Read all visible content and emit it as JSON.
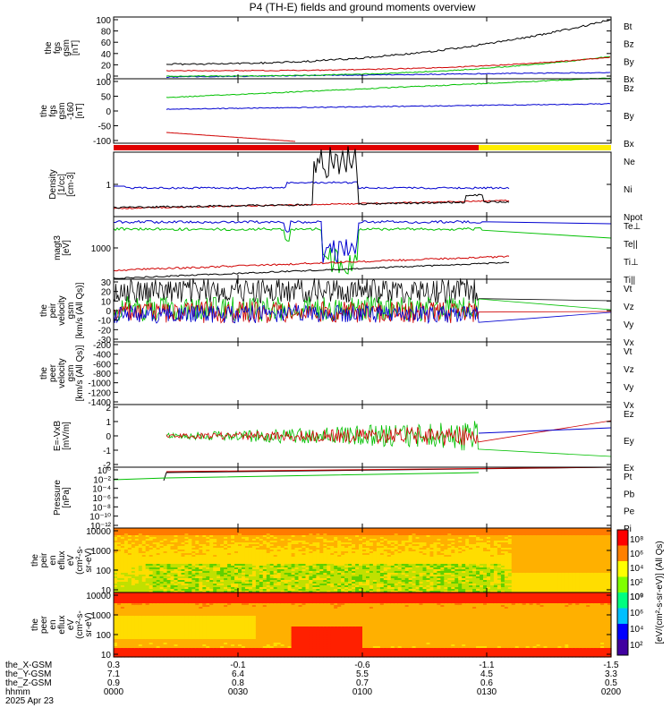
{
  "title": "P4 (TH-E) fields and ground moments overview",
  "panels": [
    {
      "id": "fgs-gsm",
      "ylabel_lines": [
        "the",
        "fgs",
        "gsm",
        "[nT]"
      ],
      "yticks": [
        "100",
        "80",
        "60",
        "40",
        "20",
        "0"
      ],
      "legend": [
        {
          "label": "Bt",
          "color": "#000000"
        },
        {
          "label": "Bz",
          "color": "#d00000"
        },
        {
          "label": "By",
          "color": "#00c000"
        },
        {
          "label": "Bx",
          "color": "#0000d0"
        }
      ]
    },
    {
      "id": "fgs-gsm-clipped",
      "ylabel_lines": [
        "the",
        "fgs",
        "gsm",
        "-160",
        "[nT]"
      ],
      "yticks": [
        "100",
        "50",
        "0",
        "-50",
        "-100"
      ],
      "legend": [
        {
          "label": "Bz",
          "color": "#d00000"
        },
        {
          "label": "By",
          "color": "#00c000"
        },
        {
          "label": "Bx",
          "color": "#0000d0"
        }
      ]
    },
    {
      "id": "density",
      "ylabel_lines": [
        "Density",
        "[1/cc]",
        "[cm-3]"
      ],
      "yticks": [
        "1"
      ],
      "legend": [
        {
          "label": "Ne",
          "color": "#d00000"
        },
        {
          "label": "Ni",
          "color": "#000000"
        },
        {
          "label": "Npot",
          "color": "#0000d0"
        }
      ]
    },
    {
      "id": "temperature",
      "ylabel_lines": [
        "magt3",
        "[eV]"
      ],
      "yticks": [
        "1000"
      ],
      "legend": [
        {
          "label": "Te⊥",
          "color": "#d00000"
        },
        {
          "label": "Te||",
          "color": "#000000"
        },
        {
          "label": "Ti⊥",
          "color": "#00c000"
        },
        {
          "label": "Ti||",
          "color": "#00c000"
        }
      ]
    },
    {
      "id": "peir-velocity",
      "ylabel_lines": [
        "the",
        "peir",
        "velocity",
        "gsm",
        "[km/s (All Qs)]"
      ],
      "yticks": [
        "30",
        "20",
        "10",
        "0",
        "-10",
        "-20",
        "-30"
      ],
      "legend": [
        {
          "label": "Vt",
          "color": "#000000"
        },
        {
          "label": "Vz",
          "color": "#d00000"
        },
        {
          "label": "Vy",
          "color": "#00c000"
        },
        {
          "label": "Vx",
          "color": "#0000d0"
        }
      ]
    },
    {
      "id": "peer-velocity",
      "ylabel_lines": [
        "the",
        "peer",
        "velocity",
        "gsm",
        "[km/s (All Qs)]"
      ],
      "yticks": [
        "-200",
        "-400",
        "-600",
        "-800",
        "-1000",
        "-1200",
        "-1400"
      ],
      "legend": [
        {
          "label": "Vt",
          "color": "#000000"
        },
        {
          "label": "Vz",
          "color": "#d00000"
        },
        {
          "label": "Vy",
          "color": "#00c000"
        },
        {
          "label": "Vx",
          "color": "#0000d0"
        }
      ]
    },
    {
      "id": "e-field",
      "ylabel_lines": [
        "E=-VxB",
        "[mV/m]"
      ],
      "yticks": [
        "2",
        "1",
        "0",
        "-1",
        "-2"
      ],
      "legend": [
        {
          "label": "Ez",
          "color": "#d00000"
        },
        {
          "label": "Ey",
          "color": "#00c000"
        },
        {
          "label": "Ex",
          "color": "#0000d0"
        }
      ]
    },
    {
      "id": "pressure",
      "ylabel_lines": [
        "Pressure",
        "[nPa]"
      ],
      "yticks": [
        "10⁰",
        "10⁻²",
        "10⁻⁴",
        "10⁻⁶",
        "10⁻⁸",
        "10⁻¹⁰",
        "10⁻¹²"
      ],
      "legend": [
        {
          "label": "Pt",
          "color": "#000000"
        },
        {
          "label": "Pb",
          "color": "#d00000"
        },
        {
          "label": "Pe",
          "color": "#00c000"
        },
        {
          "label": "Pi",
          "color": "#0000d0"
        }
      ]
    },
    {
      "id": "peir-spectrogram",
      "ylabel_lines": [
        "the",
        "peir",
        "en",
        "eflux",
        "eV",
        "(cm²-s-",
        "sr-eV)"
      ],
      "yticks": [
        "10000",
        "1000",
        "100",
        "10"
      ],
      "colorbar_ticks": [
        "10⁸",
        "10⁶",
        "10⁴",
        "10²",
        "10⁰"
      ]
    },
    {
      "id": "peer-spectrogram",
      "ylabel_lines": [
        "the",
        "peer",
        "en",
        "eflux",
        "eV",
        "(cm²-s-",
        "sr-eV)"
      ],
      "yticks": [
        "10000",
        "1000",
        "100",
        "10"
      ],
      "colorbar_ticks": [
        "10⁸",
        "10⁶",
        "10⁴",
        "10²"
      ]
    }
  ],
  "colorbar_label": "[eV/(cm²-s-sr-eV)] (All Qs)",
  "status_bar_colors": {
    "left": "#e00000",
    "right": "#ffee00"
  },
  "x_axis": {
    "rows": [
      {
        "label": "the_X-GSM",
        "values": [
          "0.3",
          "-0.1",
          "-0.6",
          "-1.1",
          "-1.5"
        ]
      },
      {
        "label": "the_Y-GSM",
        "values": [
          "7.1",
          "6.4",
          "5.5",
          "4.5",
          "3.3"
        ]
      },
      {
        "label": "the_Z-GSM",
        "values": [
          "0.9",
          "0.8",
          "0.7",
          "0.6",
          "0.5"
        ]
      },
      {
        "label": "hhmm",
        "values": [
          "0000",
          "0030",
          "0100",
          "0130",
          "0200"
        ]
      }
    ],
    "date": "2025 Apr 23"
  }
}
